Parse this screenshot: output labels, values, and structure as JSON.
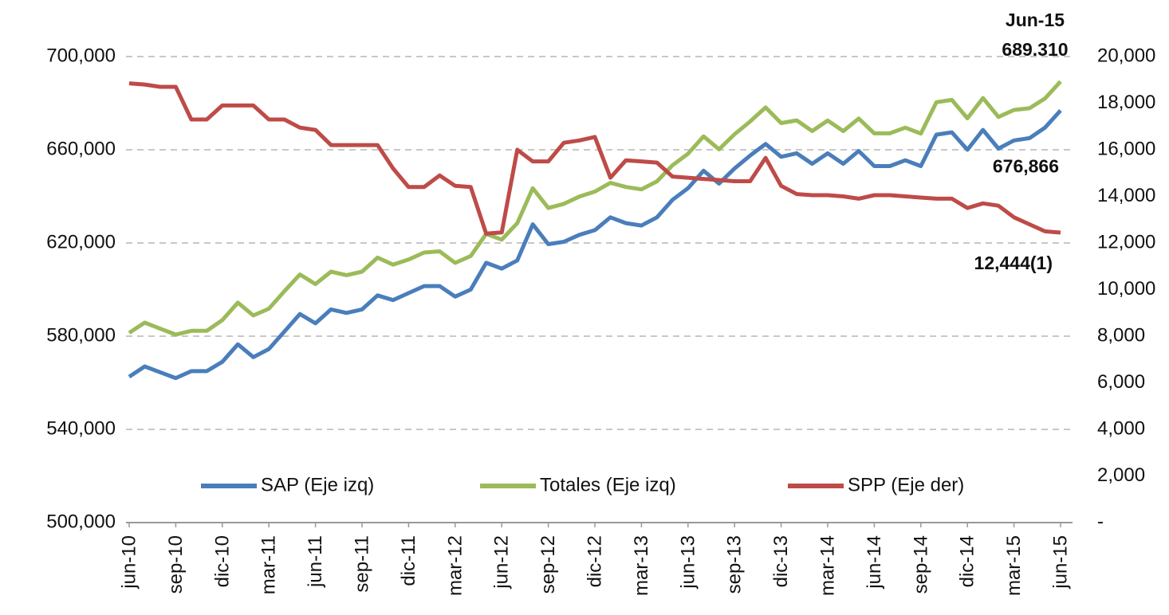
{
  "chart_data": {
    "type": "line",
    "categories": [
      "jun-10",
      null,
      null,
      "sep-10",
      null,
      null,
      "dic-10",
      null,
      null,
      "mar-11",
      null,
      null,
      "jun-11",
      null,
      null,
      "sep-11",
      null,
      null,
      "dic-11",
      null,
      null,
      "mar-12",
      null,
      null,
      "jun-12",
      null,
      null,
      "sep-12",
      null,
      null,
      "dic-12",
      null,
      null,
      "mar-13",
      null,
      null,
      "jun-13",
      null,
      null,
      "sep-13",
      null,
      null,
      "dic-13",
      null,
      null,
      "mar-14",
      null,
      null,
      "jun-14",
      null,
      null,
      "sep-14",
      null,
      null,
      "dic-14",
      null,
      null,
      "mar-15",
      null,
      null,
      "jun-15"
    ],
    "series": [
      {
        "name": "SAP (Eje izq)",
        "color": "#4a7ebb",
        "axis": "y",
        "values": [
          562600,
          567000,
          564500,
          562000,
          565000,
          565000,
          569000,
          576500,
          571000,
          574500,
          582000,
          589500,
          585500,
          591500,
          590000,
          591500,
          597500,
          595500,
          598500,
          601500,
          601500,
          597000,
          600000,
          611500,
          609000,
          612500,
          628000,
          619500,
          620500,
          623500,
          625500,
          631000,
          628500,
          627500,
          631000,
          638500,
          643500,
          651000,
          645500,
          652000,
          657500,
          662500,
          657000,
          658500,
          654000,
          658500,
          654000,
          659500,
          653000,
          653000,
          655500,
          653000,
          666500,
          667500,
          660000,
          668500,
          660500,
          664000,
          665000,
          669500,
          676866
        ],
        "value_labels": [
          null,
          null,
          null,
          null,
          null,
          null,
          null,
          null,
          null,
          null,
          null,
          null,
          null,
          null,
          null,
          null,
          null,
          null,
          null,
          null,
          null,
          null,
          null,
          null,
          null,
          null,
          null,
          null,
          null,
          null,
          null,
          null,
          null,
          null,
          null,
          null,
          null,
          null,
          null,
          null,
          null,
          null,
          null,
          null,
          null,
          null,
          null,
          null,
          null,
          null,
          null,
          null,
          null,
          null,
          null,
          null,
          null,
          null,
          null,
          null,
          "676,866"
        ]
      },
      {
        "name": "Totales (Eje izq)",
        "color": "#9bbb59",
        "axis": "y",
        "values": [
          581450,
          585800,
          583200,
          580700,
          582300,
          582300,
          586900,
          594400,
          588900,
          591800,
          599300,
          606450,
          602350,
          607700,
          606200,
          607700,
          613700,
          610700,
          612900,
          615900,
          616400,
          611450,
          614400,
          623900,
          621450,
          628500,
          643500,
          635000,
          636800,
          639900,
          642050,
          645800,
          644050,
          643000,
          646450,
          653350,
          658300,
          665750,
          660200,
          666650,
          672150,
          678150,
          671450,
          672600,
          668050,
          672550,
          668000,
          673400,
          667050,
          667050,
          669500,
          666950,
          680400,
          681400,
          673500,
          682200,
          674100,
          677100,
          677800,
          682000,
          689310
        ],
        "value_labels": [
          null,
          null,
          null,
          null,
          null,
          null,
          null,
          null,
          null,
          null,
          null,
          null,
          null,
          null,
          null,
          null,
          null,
          null,
          null,
          null,
          null,
          null,
          null,
          null,
          null,
          null,
          null,
          null,
          null,
          null,
          null,
          null,
          null,
          null,
          null,
          null,
          null,
          null,
          null,
          null,
          null,
          null,
          null,
          null,
          null,
          null,
          null,
          null,
          null,
          null,
          null,
          null,
          null,
          null,
          null,
          null,
          null,
          null,
          null,
          null,
          "689.310"
        ]
      },
      {
        "name": "SPP (Eje der)",
        "color": "#be4b48",
        "axis": "y2",
        "values": [
          18850,
          18800,
          18700,
          18700,
          17300,
          17300,
          17900,
          17900,
          17900,
          17300,
          17300,
          16950,
          16850,
          16200,
          16200,
          16200,
          16200,
          15200,
          14400,
          14400,
          14900,
          14450,
          14400,
          12400,
          12450,
          16000,
          15500,
          15500,
          16300,
          16400,
          16550,
          14800,
          15550,
          15500,
          15450,
          14850,
          14800,
          14750,
          14700,
          14650,
          14650,
          15650,
          14450,
          14100,
          14050,
          14050,
          14000,
          13900,
          14050,
          14050,
          14000,
          13950,
          13900,
          13900,
          13500,
          13700,
          13600,
          13100,
          12800,
          12500,
          12444
        ],
        "value_labels": [
          null,
          null,
          null,
          null,
          null,
          null,
          null,
          null,
          null,
          null,
          null,
          null,
          null,
          null,
          null,
          null,
          null,
          null,
          null,
          null,
          null,
          null,
          null,
          null,
          null,
          null,
          null,
          null,
          null,
          null,
          null,
          null,
          null,
          null,
          null,
          null,
          null,
          null,
          null,
          null,
          null,
          null,
          null,
          null,
          null,
          null,
          null,
          null,
          null,
          null,
          null,
          null,
          null,
          null,
          null,
          null,
          null,
          null,
          null,
          null,
          "12,444(1)"
        ]
      }
    ],
    "annotations": [
      "Jun-15"
    ],
    "ylim": [
      500000,
      700000
    ],
    "yticks": [
      {
        "value": 500000,
        "label": "500,000"
      },
      {
        "value": 540000,
        "label": "540,000"
      },
      {
        "value": 580000,
        "label": "580,000"
      },
      {
        "value": 620000,
        "label": "620,000"
      },
      {
        "value": 660000,
        "label": "660,000"
      },
      {
        "value": 700000,
        "label": "700,000"
      }
    ],
    "y2lim": [
      0,
      20000
    ],
    "y2ticks": [
      {
        "value": 0,
        "label": "-"
      },
      {
        "value": 2000,
        "label": "2,000"
      },
      {
        "value": 4000,
        "label": "4,000"
      },
      {
        "value": 6000,
        "label": "6,000"
      },
      {
        "value": 8000,
        "label": "8,000"
      },
      {
        "value": 10000,
        "label": "10,000"
      },
      {
        "value": 12000,
        "label": "12,000"
      },
      {
        "value": 14000,
        "label": "14,000"
      },
      {
        "value": 16000,
        "label": "16,000"
      },
      {
        "value": 18000,
        "label": "18,000"
      },
      {
        "value": 20000,
        "label": "20,000"
      }
    ],
    "grid": true,
    "legend": "bottom"
  }
}
